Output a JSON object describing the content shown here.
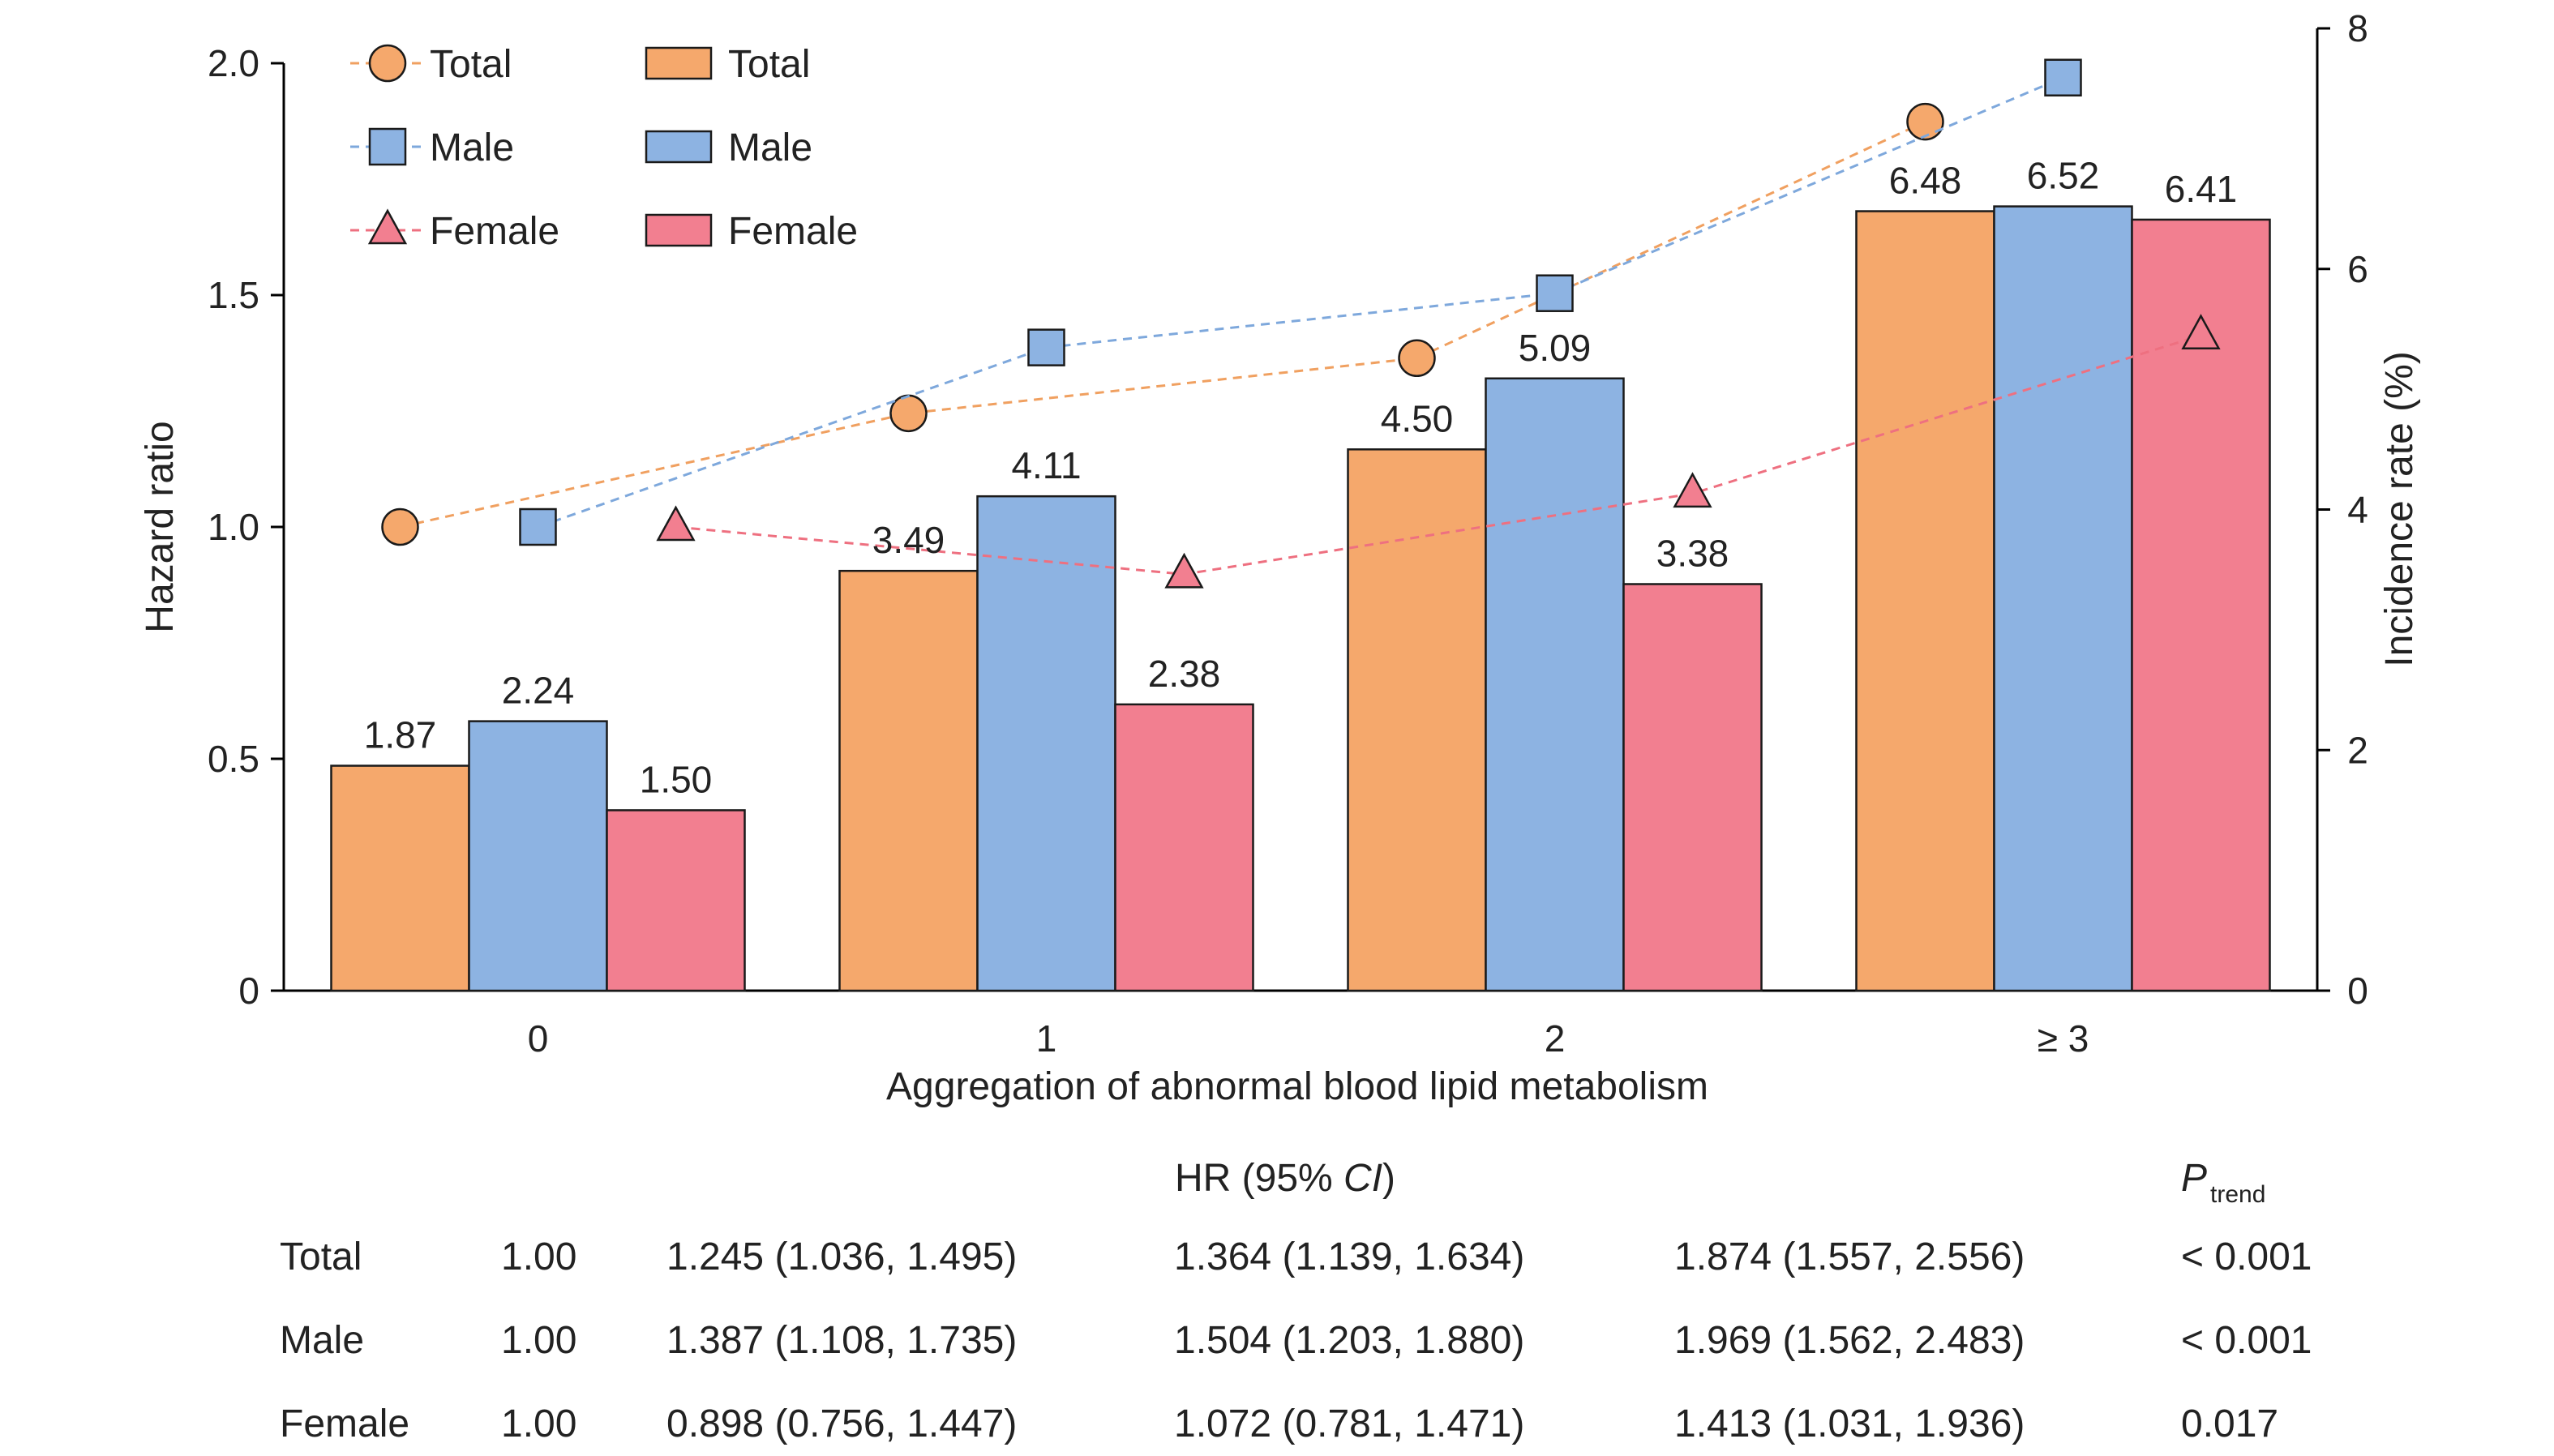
{
  "chart_data": {
    "type": "bar",
    "xlabel": "Aggregation of abnormal blood lipid metabolism",
    "ylabel_left": "Hazard ratio",
    "ylabel_right": "Incidence rate (%)",
    "categories": [
      "0",
      "1",
      "2",
      "≥ 3"
    ],
    "ylim_left": [
      0,
      2.0
    ],
    "yticks_left": [
      "0",
      "0.5",
      "1.0",
      "1.5",
      "2.0"
    ],
    "ylim_right": [
      0,
      8
    ],
    "yticks_right": [
      "0",
      "2",
      "4",
      "6",
      "8"
    ],
    "grid": false,
    "legend_position": "top-left",
    "bar_series": [
      {
        "name": "Total",
        "axis": "right",
        "color": "#F5A86C",
        "values": [
          1.87,
          3.49,
          4.5,
          6.48
        ],
        "labels": [
          "1.87",
          "3.49",
          "4.50",
          "6.48"
        ]
      },
      {
        "name": "Male",
        "axis": "right",
        "color": "#8DB3E2",
        "values": [
          2.24,
          4.11,
          5.09,
          6.52
        ],
        "labels": [
          "2.24",
          "4.11",
          "5.09",
          "6.52"
        ]
      },
      {
        "name": "Female",
        "axis": "right",
        "color": "#F27F90",
        "values": [
          1.5,
          2.38,
          3.38,
          6.41
        ],
        "labels": [
          "1.50",
          "2.38",
          "3.38",
          "6.41"
        ]
      }
    ],
    "line_series": [
      {
        "name": "Total",
        "axis": "left",
        "marker": "circle",
        "color": "#F5A86C",
        "line_color": "#F0A060",
        "values": [
          1.0,
          1.245,
          1.364,
          1.874
        ]
      },
      {
        "name": "Male",
        "axis": "left",
        "marker": "square",
        "color": "#8DB3E2",
        "line_color": "#7EA8DC",
        "values": [
          1.0,
          1.387,
          1.504,
          1.969
        ]
      },
      {
        "name": "Female",
        "axis": "left",
        "marker": "triangle",
        "color": "#F27F90",
        "line_color": "#EE7080",
        "values": [
          1.0,
          0.898,
          1.072,
          1.413
        ]
      }
    ]
  },
  "table": {
    "header": "HR (95% ",
    "header_ci": "CI",
    "header_close": ")",
    "p_label": "P",
    "p_sub": "trend",
    "rows": [
      {
        "label": "Total",
        "cells": [
          "1.00",
          "1.245 (1.036, 1.495)",
          "1.364 (1.139, 1.634)",
          "1.874 (1.557, 2.556)"
        ],
        "p": "< 0.001"
      },
      {
        "label": "Male",
        "cells": [
          "1.00",
          "1.387 (1.108, 1.735)",
          "1.504 (1.203, 1.880)",
          "1.969 (1.562, 2.483)"
        ],
        "p": "< 0.001"
      },
      {
        "label": "Female",
        "cells": [
          "1.00",
          "0.898 (0.756, 1.447)",
          "1.072 (0.781, 1.471)",
          "1.413 (1.031, 1.936)"
        ],
        "p": "0.017"
      }
    ]
  }
}
